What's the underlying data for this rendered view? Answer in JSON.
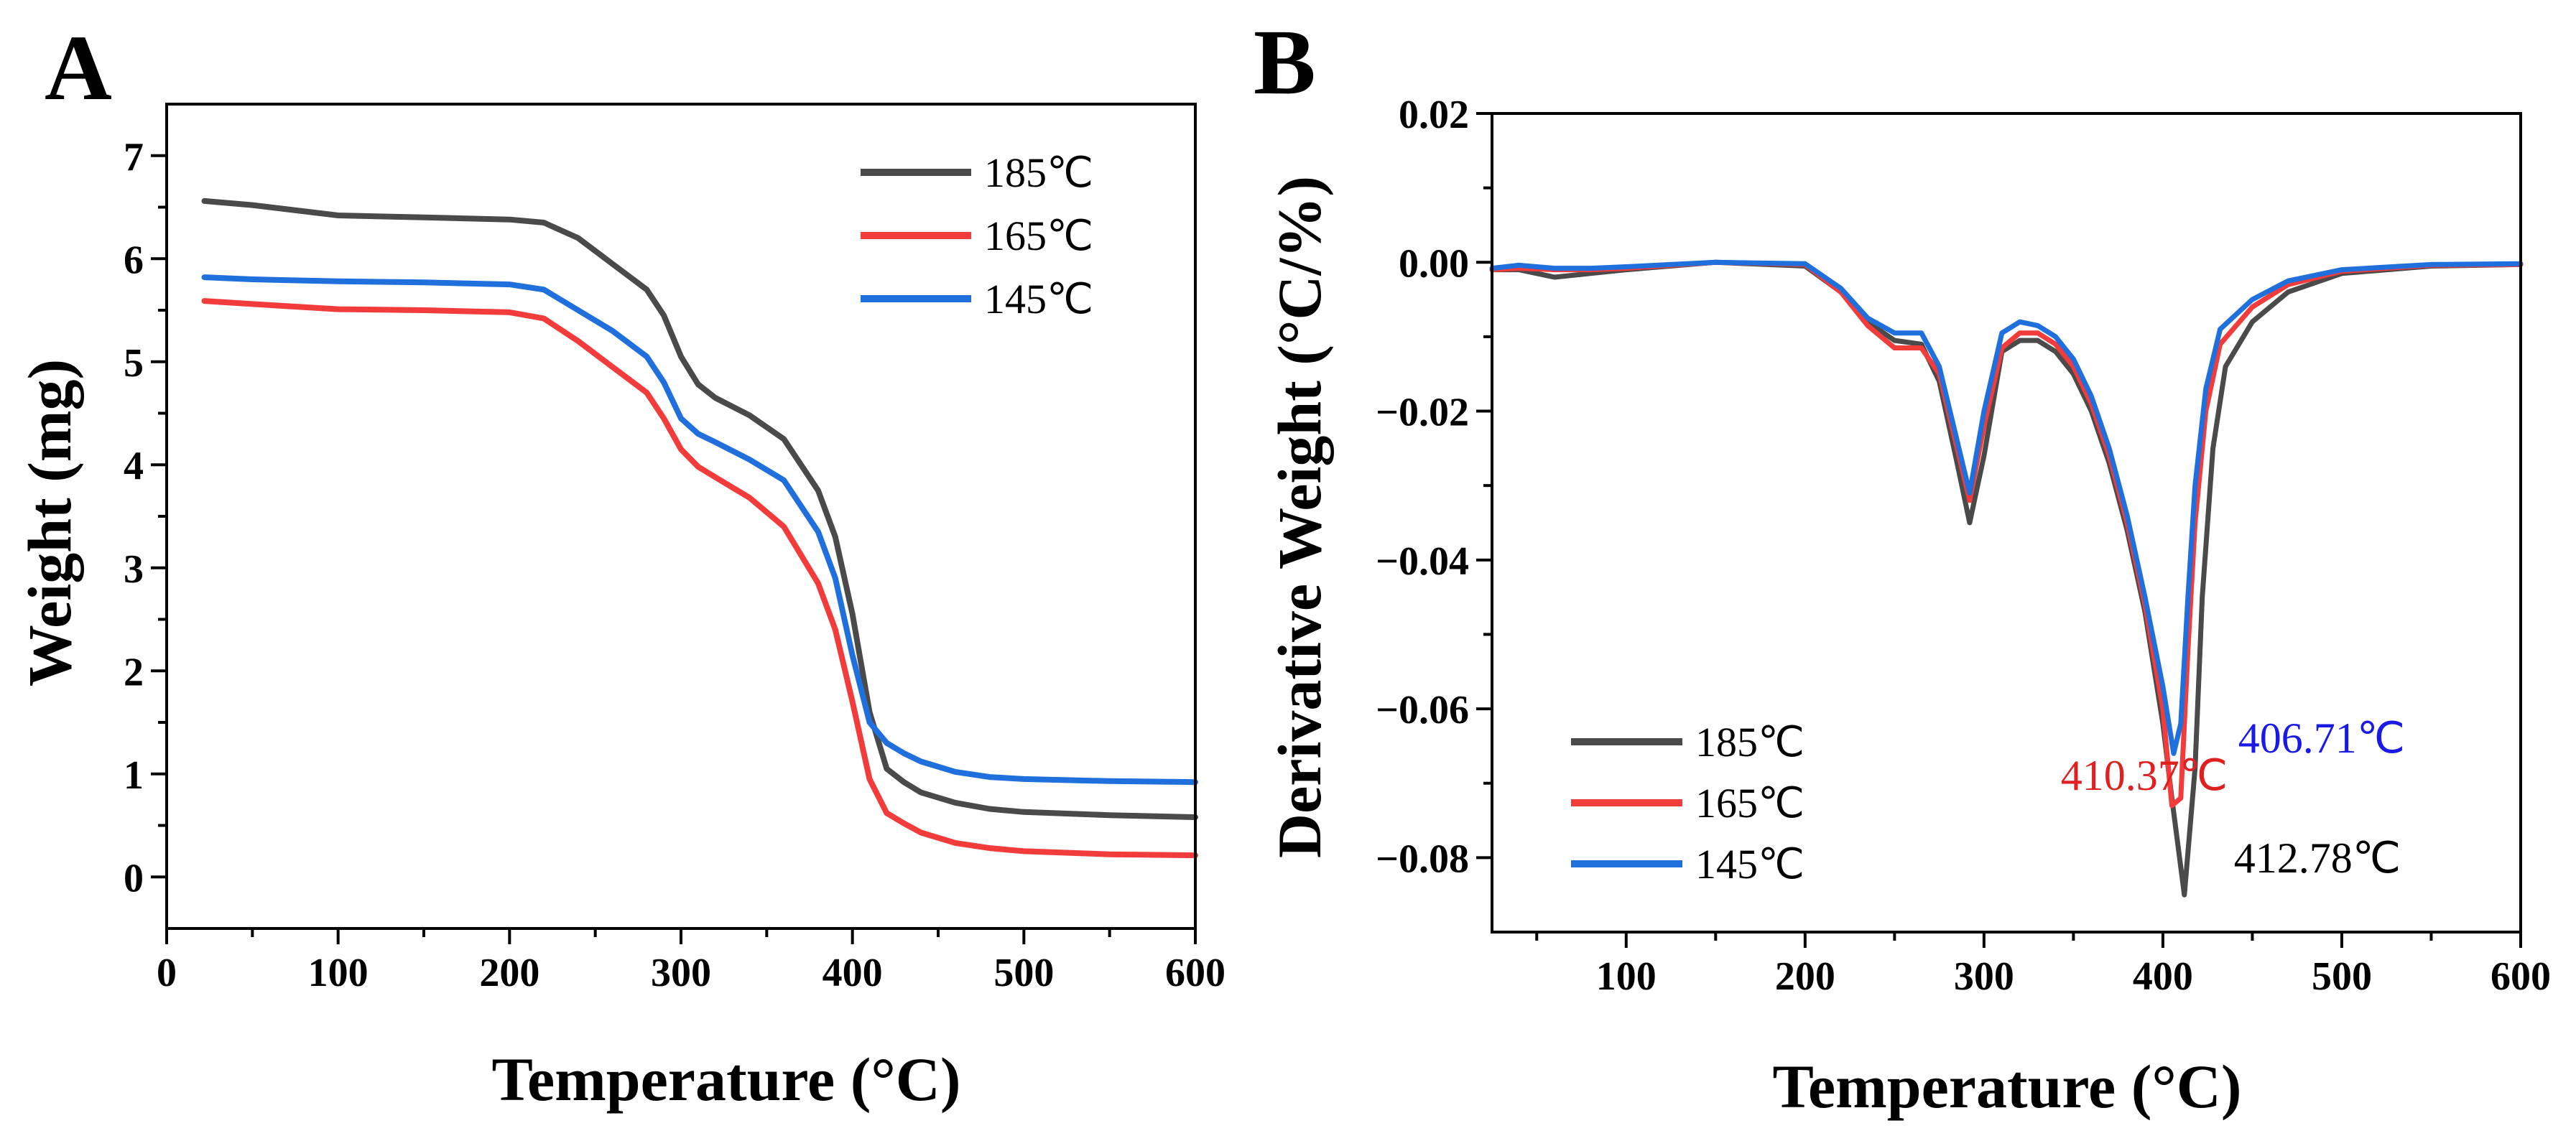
{
  "chart_data": [
    {
      "panel": "A",
      "type": "line",
      "title": "",
      "xlabel": "Temperature (°C)",
      "ylabel": "Weight (mg)",
      "xlim": [
        0,
        600
      ],
      "ylim": [
        -0.5,
        7.5
      ],
      "xticks": [
        0,
        100,
        200,
        300,
        400,
        500,
        600
      ],
      "yticks": [
        0,
        1,
        2,
        3,
        4,
        5,
        6,
        7
      ],
      "legend_position": "top-right",
      "series": [
        {
          "name": "185℃",
          "color": "#4a4a4a",
          "x": [
            22,
            50,
            100,
            150,
            200,
            220,
            240,
            260,
            280,
            290,
            300,
            310,
            320,
            340,
            360,
            380,
            390,
            400,
            410,
            420,
            430,
            440,
            460,
            480,
            500,
            550,
            600
          ],
          "y": [
            6.56,
            6.52,
            6.42,
            6.4,
            6.38,
            6.35,
            6.2,
            5.95,
            5.7,
            5.45,
            5.05,
            4.78,
            4.65,
            4.48,
            4.25,
            3.75,
            3.3,
            2.55,
            1.6,
            1.05,
            0.92,
            0.82,
            0.72,
            0.66,
            0.63,
            0.6,
            0.58
          ]
        },
        {
          "name": "165℃",
          "color": "#f23b3b",
          "x": [
            22,
            50,
            100,
            150,
            200,
            220,
            240,
            260,
            280,
            290,
            300,
            310,
            320,
            340,
            360,
            380,
            390,
            400,
            410,
            420,
            430,
            440,
            460,
            480,
            500,
            550,
            600
          ],
          "y": [
            5.59,
            5.56,
            5.51,
            5.5,
            5.48,
            5.42,
            5.2,
            4.95,
            4.7,
            4.45,
            4.15,
            3.98,
            3.88,
            3.68,
            3.4,
            2.85,
            2.4,
            1.7,
            0.95,
            0.62,
            0.52,
            0.43,
            0.33,
            0.28,
            0.25,
            0.22,
            0.21
          ]
        },
        {
          "name": "145℃",
          "color": "#1f6fdd",
          "x": [
            22,
            50,
            100,
            150,
            200,
            220,
            240,
            260,
            280,
            290,
            300,
            310,
            320,
            340,
            360,
            380,
            390,
            400,
            410,
            420,
            430,
            440,
            460,
            480,
            500,
            550,
            600
          ],
          "y": [
            5.82,
            5.8,
            5.78,
            5.77,
            5.75,
            5.7,
            5.5,
            5.3,
            5.05,
            4.8,
            4.45,
            4.3,
            4.22,
            4.05,
            3.85,
            3.35,
            2.9,
            2.15,
            1.5,
            1.3,
            1.2,
            1.12,
            1.02,
            0.97,
            0.95,
            0.93,
            0.92
          ]
        }
      ]
    },
    {
      "panel": "B",
      "type": "line",
      "title": "",
      "xlabel": "Temperature (°C)",
      "ylabel": "Derivative Weight (°C/%)",
      "xlim": [
        25,
        600
      ],
      "ylim": [
        -0.09,
        0.02
      ],
      "xticks": [
        100,
        200,
        300,
        400,
        500,
        600
      ],
      "yticks": [
        0.02,
        0.0,
        -0.02,
        -0.04,
        -0.06,
        -0.08
      ],
      "ytick_labels": [
        "0.02",
        "0.00",
        "−0.02",
        "−0.04",
        "−0.06",
        "−0.08"
      ],
      "legend_position": "bottom-left",
      "series": [
        {
          "name": "185℃",
          "color": "#4a4a4a",
          "x": [
            25,
            40,
            60,
            80,
            100,
            150,
            200,
            220,
            235,
            250,
            265,
            275,
            285,
            292,
            300,
            310,
            320,
            330,
            340,
            350,
            360,
            370,
            380,
            390,
            400,
            405,
            412,
            418,
            422,
            428,
            435,
            450,
            470,
            500,
            550,
            600
          ],
          "y": [
            -0.001,
            -0.001,
            -0.002,
            -0.0015,
            -0.001,
            0.0,
            -0.0005,
            -0.004,
            -0.008,
            -0.0105,
            -0.011,
            -0.016,
            -0.027,
            -0.035,
            -0.026,
            -0.012,
            -0.0105,
            -0.0105,
            -0.012,
            -0.015,
            -0.02,
            -0.027,
            -0.036,
            -0.047,
            -0.062,
            -0.072,
            -0.085,
            -0.068,
            -0.045,
            -0.025,
            -0.014,
            -0.008,
            -0.004,
            -0.0015,
            -0.0005,
            -0.0003
          ]
        },
        {
          "name": "165℃",
          "color": "#f23b3b",
          "x": [
            25,
            40,
            60,
            80,
            100,
            150,
            200,
            220,
            235,
            250,
            265,
            275,
            285,
            292,
            300,
            310,
            320,
            330,
            340,
            350,
            360,
            370,
            380,
            390,
            400,
            405,
            410,
            414,
            418,
            424,
            432,
            450,
            470,
            500,
            550,
            600
          ],
          "y": [
            -0.001,
            -0.0008,
            -0.001,
            -0.001,
            -0.0008,
            0.0,
            -0.0003,
            -0.004,
            -0.0085,
            -0.0115,
            -0.0115,
            -0.015,
            -0.025,
            -0.032,
            -0.022,
            -0.0115,
            -0.0095,
            -0.0095,
            -0.011,
            -0.014,
            -0.019,
            -0.026,
            -0.035,
            -0.046,
            -0.06,
            -0.073,
            -0.072,
            -0.052,
            -0.035,
            -0.02,
            -0.011,
            -0.006,
            -0.003,
            -0.0012,
            -0.0004,
            -0.0003
          ]
        },
        {
          "name": "145℃",
          "color": "#1f6fdd",
          "x": [
            25,
            40,
            60,
            80,
            100,
            150,
            200,
            220,
            235,
            250,
            265,
            275,
            285,
            292,
            300,
            310,
            320,
            330,
            340,
            350,
            360,
            370,
            380,
            390,
            400,
            406,
            410,
            414,
            418,
            424,
            432,
            450,
            470,
            500,
            550,
            600
          ],
          "y": [
            -0.0008,
            -0.0004,
            -0.0008,
            -0.0008,
            -0.0006,
            0.0,
            -0.0002,
            -0.0035,
            -0.0075,
            -0.0095,
            -0.0095,
            -0.014,
            -0.024,
            -0.031,
            -0.02,
            -0.0095,
            -0.008,
            -0.0085,
            -0.01,
            -0.013,
            -0.018,
            -0.025,
            -0.034,
            -0.045,
            -0.057,
            -0.066,
            -0.062,
            -0.045,
            -0.03,
            -0.017,
            -0.009,
            -0.005,
            -0.0025,
            -0.001,
            -0.0003,
            -0.0002
          ]
        }
      ],
      "annotations": [
        {
          "text": "410.37℃",
          "color": "#e02020"
        },
        {
          "text": "406.71℃",
          "color": "#1a1ae6"
        },
        {
          "text": "412.78℃",
          "color": "#000000"
        }
      ]
    }
  ],
  "labels": {
    "panel_a": "A",
    "panel_b": "B"
  }
}
